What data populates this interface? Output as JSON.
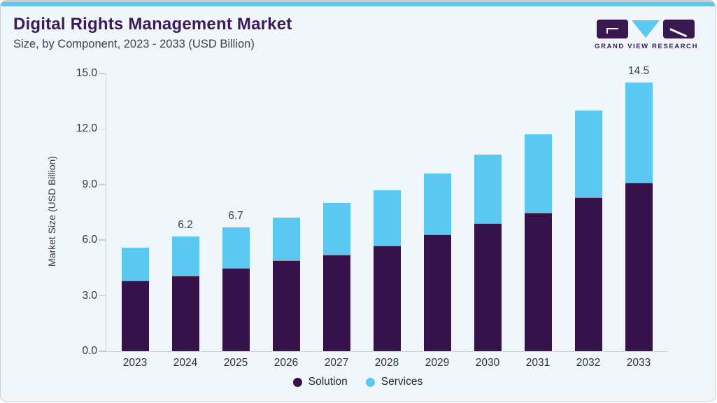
{
  "header": {
    "title": "Digital Rights Management Market",
    "subtitle": "Size, by Component, 2023 - 2033 (USD Billion)"
  },
  "brand": {
    "name": "GRAND VIEW RESEARCH",
    "logo_icons": [
      "g-block-icon",
      "v-triangle-icon",
      "r-block-icon"
    ]
  },
  "colors": {
    "accent_blue": "#5bc8f2",
    "brand_purple": "#3b1b5b",
    "logo_purple": "#38184e",
    "card_background": "#f1f6fa",
    "axis_gray": "#c9ced3"
  },
  "chart_data": {
    "type": "bar",
    "stacked": true,
    "title": "Digital Rights Management Market",
    "subtitle": "Size, by Component, 2023 - 2033 (USD Billion)",
    "xlabel": "",
    "ylabel": "Market Size (USD Billion)",
    "categories": [
      "2023",
      "2024",
      "2025",
      "2026",
      "2027",
      "2028",
      "2029",
      "2030",
      "2031",
      "2032",
      "2033"
    ],
    "series": [
      {
        "name": "Solution",
        "color": "#36124a",
        "values": [
          3.8,
          4.1,
          4.5,
          4.9,
          5.2,
          5.7,
          6.3,
          6.9,
          7.5,
          8.3,
          9.1
        ]
      },
      {
        "name": "Services",
        "color": "#5bc8f2",
        "values": [
          1.8,
          2.1,
          2.2,
          2.3,
          2.8,
          3.0,
          3.3,
          3.7,
          4.2,
          4.7,
          5.4
        ]
      }
    ],
    "totals": [
      5.6,
      6.2,
      6.7,
      7.2,
      8.0,
      8.7,
      9.6,
      10.6,
      11.7,
      13.0,
      14.5
    ],
    "total_labels": [
      "",
      "6.2",
      "6.7",
      "",
      "",
      "",
      "",
      "",
      "",
      "",
      "14.5"
    ],
    "ylim": [
      0,
      15
    ],
    "yticks": [
      "0.0",
      "3.0",
      "6.0",
      "9.0",
      "12.0",
      "15.0"
    ],
    "grid": false,
    "legend_position": "bottom"
  }
}
